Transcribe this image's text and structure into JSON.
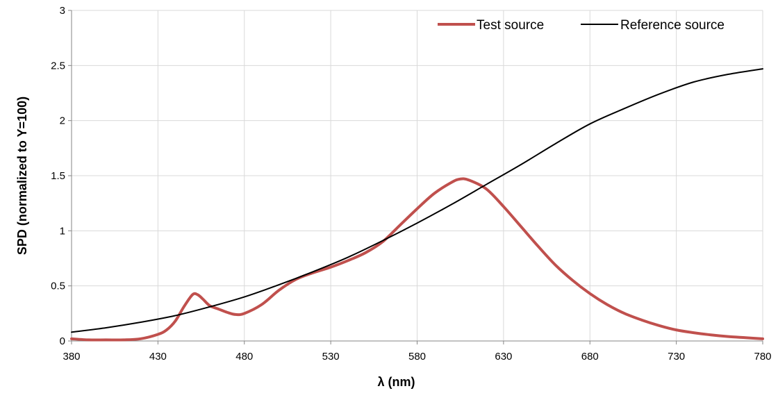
{
  "chart_data": {
    "type": "line",
    "title": "",
    "xlabel": "λ (nm)",
    "ylabel": "SPD (normalized to Y=100)",
    "xlim": [
      380,
      780
    ],
    "ylim": [
      0,
      3
    ],
    "xticks": [
      380,
      430,
      480,
      530,
      580,
      630,
      680,
      730,
      780
    ],
    "yticks": [
      0,
      0.5,
      1,
      1.5,
      2,
      2.5,
      3
    ],
    "xtick_labels": [
      "380",
      "430",
      "480",
      "530",
      "580",
      "630",
      "680",
      "730",
      "780"
    ],
    "ytick_labels": [
      "0",
      "0.5",
      "1",
      "1.5",
      "2",
      "2.5",
      "3"
    ],
    "grid": true,
    "legend_position": "top-right",
    "series": [
      {
        "name": "Test source",
        "color": "#c0504d",
        "x": [
          380,
          390,
          400,
          410,
          420,
          430,
          435,
          440,
          445,
          450,
          453,
          456,
          460,
          465,
          470,
          475,
          480,
          490,
          500,
          510,
          520,
          530,
          540,
          550,
          560,
          570,
          580,
          590,
          600,
          605,
          610,
          620,
          630,
          640,
          650,
          660,
          670,
          680,
          690,
          700,
          710,
          720,
          730,
          740,
          750,
          760,
          770,
          780
        ],
        "y": [
          0.02,
          0.01,
          0.01,
          0.01,
          0.02,
          0.06,
          0.1,
          0.18,
          0.31,
          0.42,
          0.42,
          0.38,
          0.32,
          0.29,
          0.26,
          0.24,
          0.25,
          0.33,
          0.46,
          0.56,
          0.62,
          0.67,
          0.73,
          0.8,
          0.9,
          1.05,
          1.2,
          1.34,
          1.44,
          1.47,
          1.46,
          1.38,
          1.22,
          1.04,
          0.86,
          0.69,
          0.55,
          0.43,
          0.33,
          0.25,
          0.19,
          0.14,
          0.1,
          0.075,
          0.055,
          0.04,
          0.03,
          0.02
        ]
      },
      {
        "name": "Reference source",
        "color": "#000000",
        "x": [
          380,
          400,
          420,
          440,
          460,
          480,
          500,
          520,
          540,
          560,
          580,
          600,
          620,
          640,
          660,
          680,
          700,
          720,
          740,
          760,
          780
        ],
        "y": [
          0.08,
          0.12,
          0.17,
          0.23,
          0.31,
          0.4,
          0.51,
          0.63,
          0.76,
          0.91,
          1.07,
          1.24,
          1.42,
          1.6,
          1.79,
          1.97,
          2.11,
          2.24,
          2.35,
          2.42,
          2.47
        ]
      }
    ]
  }
}
